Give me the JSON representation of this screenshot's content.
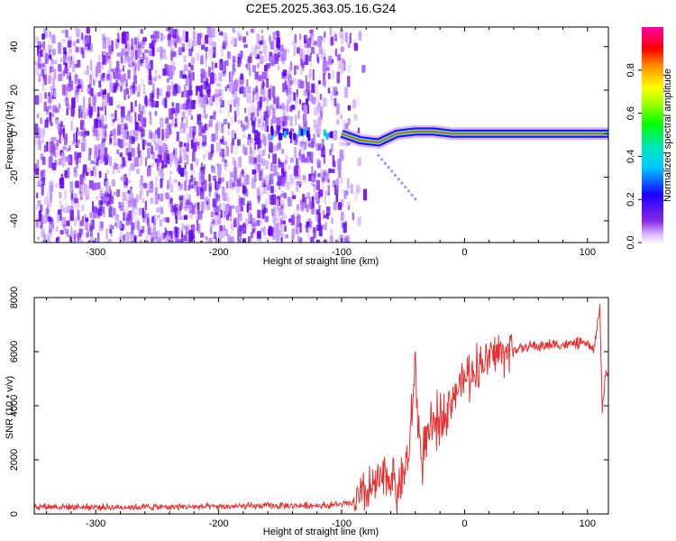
{
  "title": "C2E5.2025.363.05.16.G24",
  "chart_data": [
    {
      "type": "heatmap",
      "name": "spectrogram",
      "xlabel": "Height of straight line (km)",
      "ylabel": "Frequency (Hz)",
      "xlim": [
        -350,
        117
      ],
      "ylim": [
        -50,
        49
      ],
      "xticks": [
        -300,
        -200,
        -100,
        0,
        100
      ],
      "yticks": [
        -40,
        -20,
        0,
        20,
        40
      ],
      "colorbar": {
        "label": "Normalized spectral amplitude",
        "range": [
          0.0,
          1.0
        ],
        "ticks": [
          0.0,
          0.2,
          0.4,
          0.6,
          0.8
        ],
        "tick_labels": [
          "0.0",
          "0.2",
          "0.4",
          "0.6",
          "0.8"
        ]
      },
      "features": {
        "noise_region_x": [
          -350,
          -100
        ],
        "noise_fade_x": [
          -120,
          -80
        ],
        "signal_line_frequency": 0,
        "signal_start_x": -160,
        "signal_wiggle": [
          {
            "x": -100,
            "f": 0
          },
          {
            "x": -85,
            "f": -3
          },
          {
            "x": -70,
            "f": -4
          },
          {
            "x": -55,
            "f": 0
          },
          {
            "x": -40,
            "f": 1
          },
          {
            "x": -25,
            "f": 1
          },
          {
            "x": -10,
            "f": 0
          },
          {
            "x": 117,
            "f": 0
          }
        ],
        "diagonal_artifact": [
          {
            "x": -70,
            "f": -10
          },
          {
            "x": -40,
            "f": -30
          }
        ]
      }
    },
    {
      "type": "line",
      "name": "snr",
      "xlabel": "Height of straight line (km)",
      "ylabel": "SNR (10 * v/v)",
      "xlim": [
        -350,
        117
      ],
      "ylim": [
        0,
        8000
      ],
      "xticks": [
        -300,
        -200,
        -100,
        0,
        100
      ],
      "yticks": [
        0,
        2000,
        4000,
        6000,
        8000
      ],
      "color": "#e83030",
      "series": [
        {
          "name": "SNR",
          "x": [
            -350,
            -300,
            -250,
            -200,
            -150,
            -110,
            -90,
            -80,
            -70,
            -60,
            -55,
            -50,
            -45,
            -40,
            -38,
            -35,
            -30,
            -25,
            -20,
            -15,
            -10,
            -5,
            0,
            10,
            20,
            30,
            40,
            50,
            55,
            60,
            70,
            80,
            90,
            100,
            105,
            110,
            112,
            115,
            117
          ],
          "values": [
            280,
            250,
            260,
            270,
            300,
            320,
            400,
            700,
            1200,
            1500,
            800,
            1400,
            2200,
            5600,
            3500,
            2000,
            2800,
            3200,
            3600,
            3900,
            4300,
            4700,
            5000,
            5400,
            5800,
            6000,
            6100,
            6150,
            6200,
            6200,
            6250,
            6250,
            6300,
            6300,
            6000,
            7600,
            3900,
            5300,
            5100
          ]
        }
      ]
    }
  ]
}
